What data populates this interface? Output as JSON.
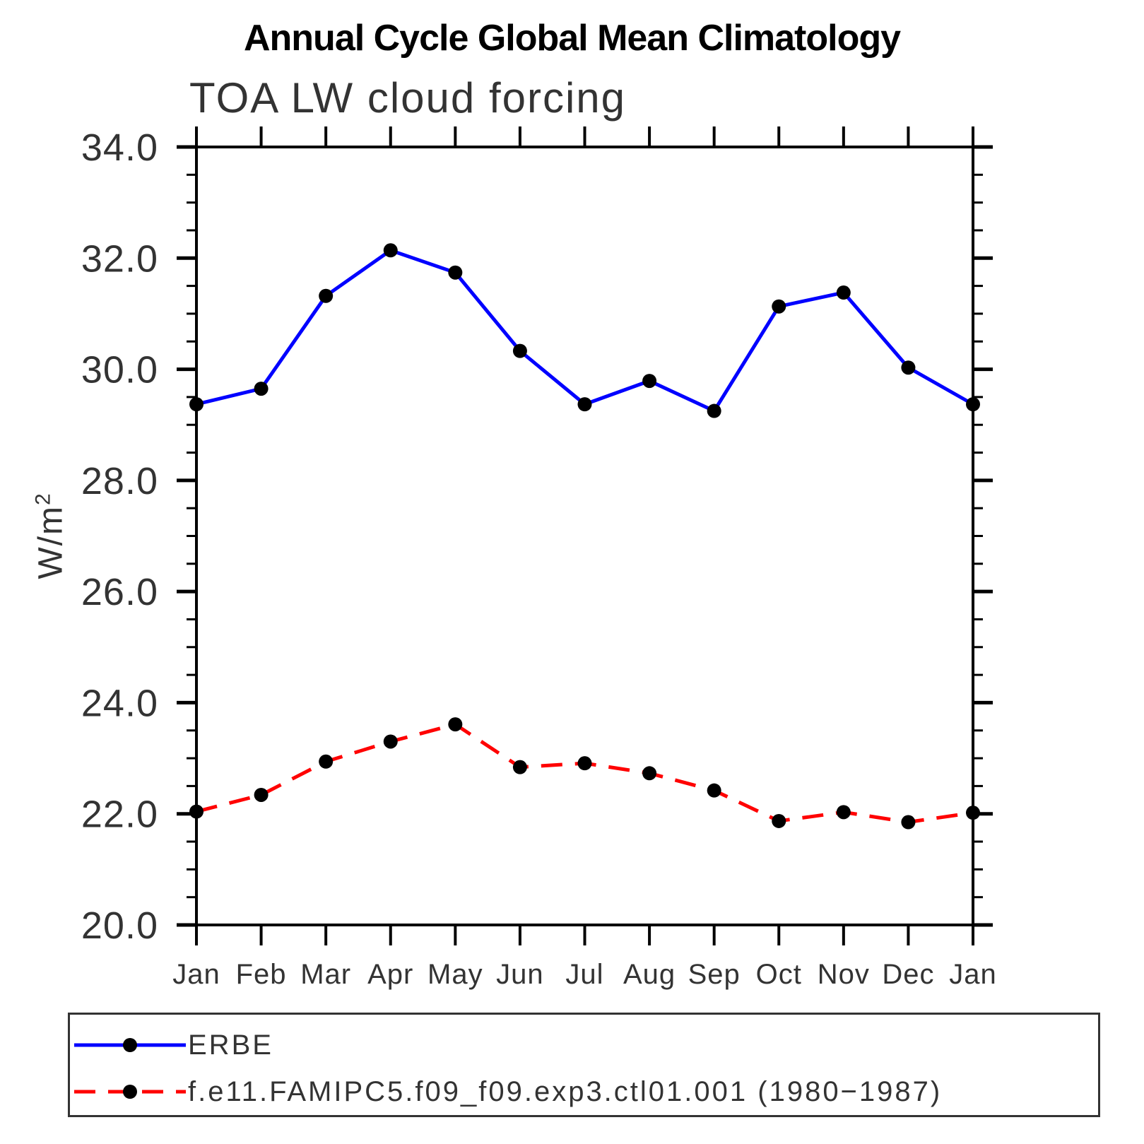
{
  "title": "Annual Cycle Global Mean Climatology",
  "subtitle": "TOA LW cloud forcing",
  "y_axis_title": "W/m",
  "y_axis_title_exponent": "2",
  "colors": {
    "erbe_line": "#0000ff",
    "model_line": "#ff0000",
    "marker": "#000000",
    "axis": "#000000",
    "text": "#333333"
  },
  "legend": {
    "entries": [
      {
        "label": "ERBE",
        "color": "#0000ff",
        "style": "solid"
      },
      {
        "label": "f.e11.FAMIPC5.f09_f09.exp3.ctl01.001 (1980−1987)",
        "color": "#ff0000",
        "style": "dashed"
      }
    ]
  },
  "chart_data": {
    "type": "line",
    "title": "Annual Cycle Global Mean Climatology",
    "subtitle": "TOA LW cloud forcing",
    "xlabel": "",
    "ylabel": "W/m2",
    "categories": [
      "Jan",
      "Feb",
      "Mar",
      "Apr",
      "May",
      "Jun",
      "Jul",
      "Aug",
      "Sep",
      "Oct",
      "Nov",
      "Dec",
      "Jan"
    ],
    "ylim": [
      20.0,
      34.0
    ],
    "y_major_tick_step": 2.0,
    "y_minor_tick_step": 0.5,
    "y_tick_labels": [
      "20.0",
      "22.0",
      "24.0",
      "26.0",
      "28.0",
      "30.0",
      "32.0",
      "34.0"
    ],
    "grid": false,
    "legend_position": "bottom",
    "series": [
      {
        "name": "ERBE",
        "color": "#0000ff",
        "line_style": "solid",
        "marker": "circle",
        "marker_color": "#000000",
        "values": [
          29.37,
          29.65,
          31.32,
          32.14,
          31.74,
          30.33,
          29.37,
          29.79,
          29.25,
          31.13,
          31.38,
          30.03,
          29.37
        ]
      },
      {
        "name": "f.e11.FAMIPC5.f09_f09.exp3.ctl01.001 (1980−1987)",
        "color": "#ff0000",
        "line_style": "dashed",
        "marker": "circle",
        "marker_color": "#000000",
        "values": [
          22.04,
          22.34,
          22.94,
          23.3,
          23.61,
          22.84,
          22.91,
          22.73,
          22.42,
          21.87,
          22.03,
          21.85,
          22.02
        ]
      }
    ]
  }
}
